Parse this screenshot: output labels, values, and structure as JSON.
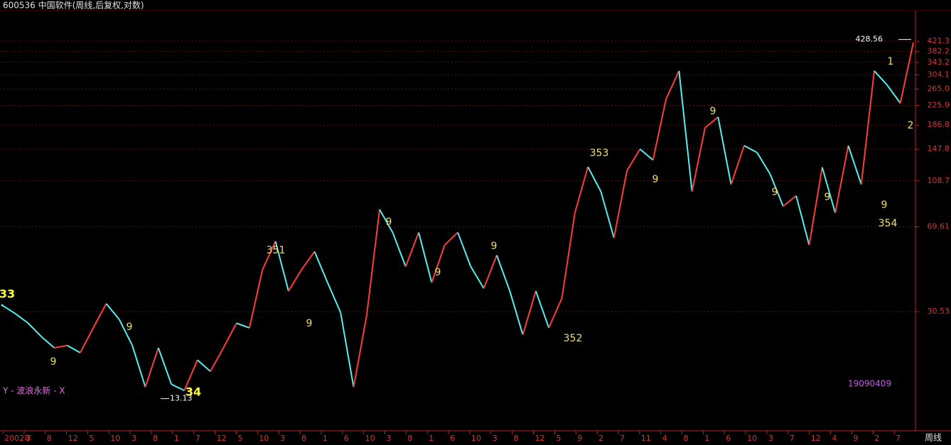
{
  "chart_data": {
    "type": "line",
    "title": "600536 中国软件(周线,后复权,对数)",
    "period_label": "周线",
    "indicator_label": "Y - 波浪永新 - X",
    "date_code": "19090409",
    "log_scale": true,
    "grid": true,
    "up_color": "#ff3c3c",
    "down_color": "#54f0f0",
    "ylim": [
      9.74,
      567
    ],
    "yticks": [
      30.53,
      69.61,
      108.7,
      147.8,
      186.8,
      225.9,
      {
        "value": 265.0,
        "label": "265.0"
      },
      304.1,
      343.2,
      382.2,
      421.3
    ],
    "x_labels": [
      "2002年",
      "3",
      "8",
      "12",
      "5",
      "10",
      "3",
      "8",
      "1",
      "7",
      "12",
      "5",
      "10",
      "3",
      "8",
      "1",
      "6",
      "10",
      "3",
      "8",
      "1",
      "6",
      "10",
      "3",
      "8",
      "12",
      "5",
      "9",
      "2",
      "7",
      "11",
      "4",
      "8",
      "1",
      "6",
      "10",
      "3",
      "7",
      "12",
      "4",
      "9",
      "2",
      "7"
    ],
    "values": [
      32.5,
      30,
      27.3,
      24,
      21.5,
      22,
      20.5,
      26.1,
      33,
      28.3,
      22,
      14.7,
      21.5,
      15.1,
      14.2,
      19.1,
      17.1,
      21.5,
      27.3,
      26.1,
      45.9,
      60.4,
      37.3,
      45.9,
      54.7,
      40.5,
      30.3,
      14.7,
      29.3,
      82.3,
      65.9,
      47.3,
      65.9,
      40.5,
      58.3,
      65.9,
      47.3,
      38.3,
      52.8,
      37.3,
      24.4,
      37.3,
      26.1,
      34.8,
      79.6,
      124.5,
      97.9,
      62.5,
      120,
      148,
      133,
      240,
      316,
      98,
      182,
      202,
      105,
      153,
      143,
      116,
      85,
      94,
      58.3,
      124,
      79.6,
      153,
      105,
      316,
      275,
      231,
      416
    ],
    "wave_labels": [
      "33",
      "34",
      "351",
      "352",
      "353",
      "354",
      "1",
      "2"
    ],
    "count_labels": [
      "9",
      "9",
      "9",
      "9",
      "9",
      "9",
      "9",
      "9",
      "9",
      "9",
      "9"
    ],
    "price_marks": [
      13.13,
      428.56
    ]
  }
}
